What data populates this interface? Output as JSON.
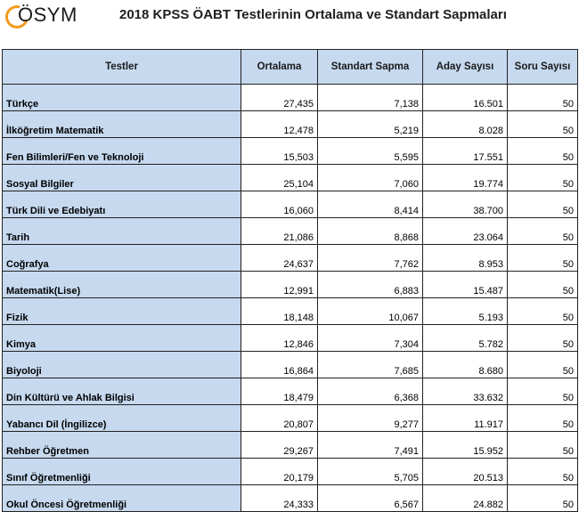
{
  "header": {
    "logo_text": "ÖSYM",
    "title": "2018 KPSS ÖABT Testlerinin Ortalama ve Standart Sapmaları"
  },
  "table": {
    "columns": [
      "Testler",
      "Ortalama",
      "Standart Sapma",
      "Aday Sayısı",
      "Soru Sayısı"
    ],
    "rows": [
      [
        "Türkçe",
        "27,435",
        "7,138",
        "16.501",
        "50"
      ],
      [
        "İlköğretim Matematik",
        "12,478",
        "5,219",
        "8.028",
        "50"
      ],
      [
        "Fen Bilimleri/Fen ve Teknoloji",
        "15,503",
        "5,595",
        "17.551",
        "50"
      ],
      [
        "Sosyal Bilgiler",
        "25,104",
        "7,060",
        "19.774",
        "50"
      ],
      [
        "Türk Dili ve Edebiyatı",
        "16,060",
        "8,414",
        "38.700",
        "50"
      ],
      [
        "Tarih",
        "21,086",
        "8,868",
        "23.064",
        "50"
      ],
      [
        "Coğrafya",
        "24,637",
        "7,762",
        "8.953",
        "50"
      ],
      [
        "Matematik(Lise)",
        "12,991",
        "6,883",
        "15.487",
        "50"
      ],
      [
        "Fizik",
        "18,148",
        "10,067",
        "5.193",
        "50"
      ],
      [
        "Kimya",
        "12,846",
        "7,304",
        "5.782",
        "50"
      ],
      [
        "Biyoloji",
        "16,864",
        "7,685",
        "8.680",
        "50"
      ],
      [
        "Din Kültürü ve Ahlak Bilgisi",
        "18,479",
        "6,368",
        "33.632",
        "50"
      ],
      [
        "Yabancı Dil (İngilizce)",
        "20,807",
        "9,277",
        "11.917",
        "50"
      ],
      [
        "Rehber Öğretmen",
        "29,267",
        "7,491",
        "15.952",
        "50"
      ],
      [
        "Sınıf Öğretmenliği",
        "20,179",
        "5,705",
        "20.513",
        "50"
      ],
      [
        "Okul Öncesi Öğretmenliği",
        "24,333",
        "6,567",
        "24.882",
        "50"
      ]
    ]
  }
}
